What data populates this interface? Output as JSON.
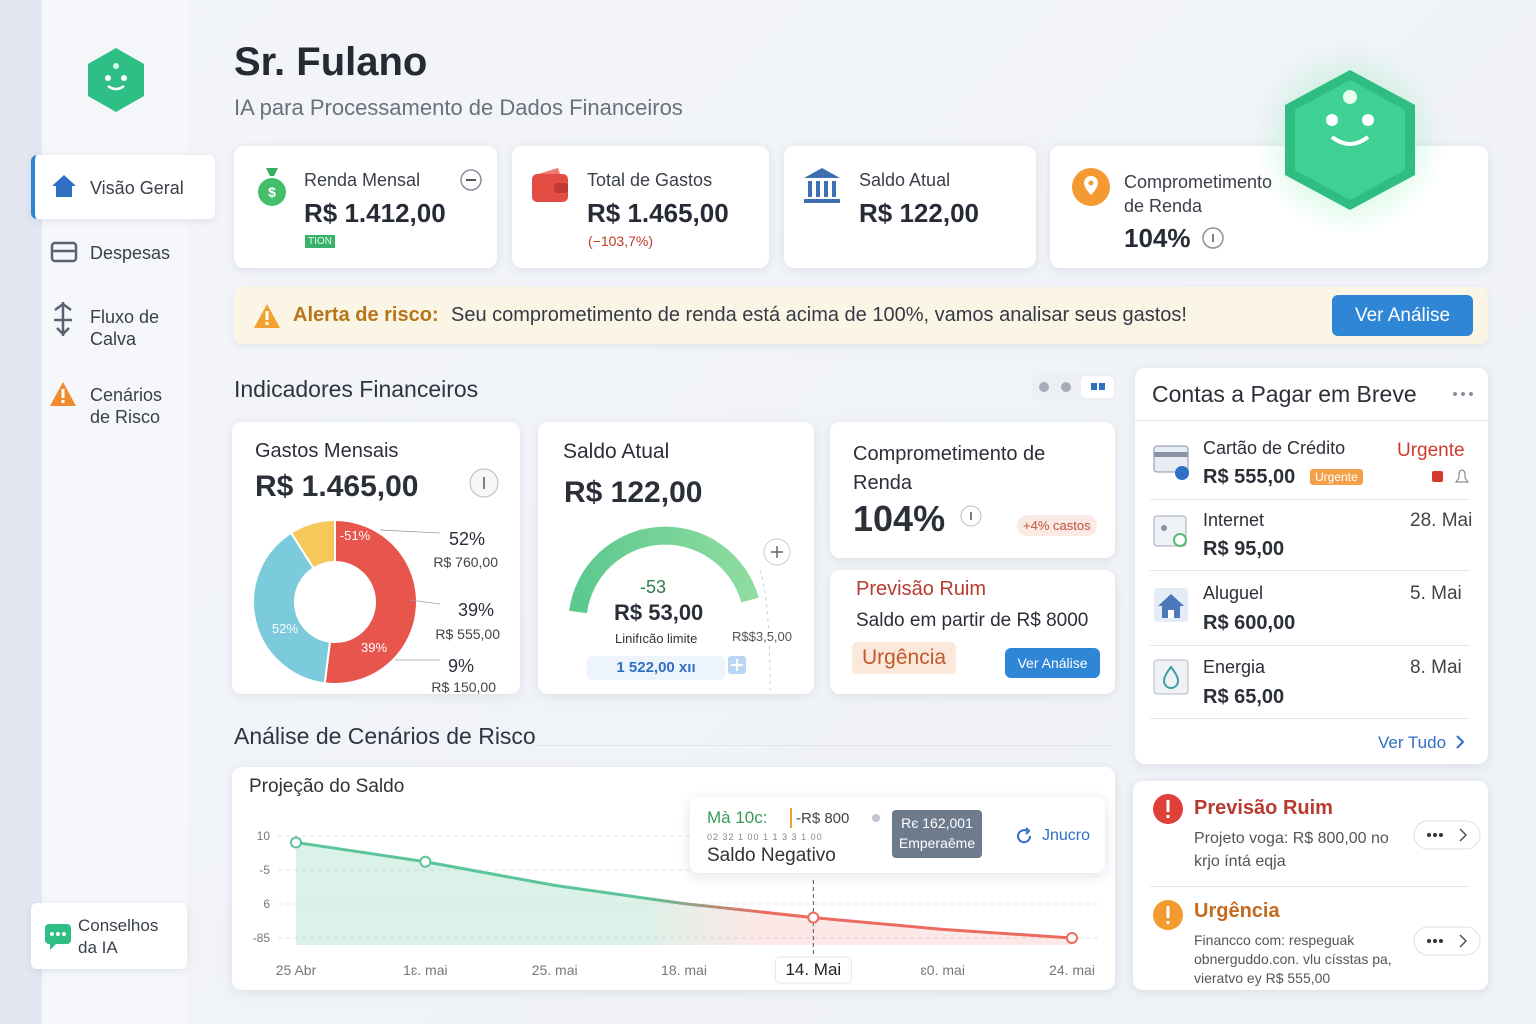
{
  "sidebar": {
    "nav": [
      "Visão Geral",
      "Despesas",
      "Fluxo de Calva",
      "Cenários de Risco"
    ],
    "advice": "Conselhos da IA"
  },
  "header": {
    "title": "Sr. Fulano",
    "subtitle": "IA para Processamento de Dados Financeiros"
  },
  "kpis": [
    {
      "label": "Renda Mensal",
      "value": "R$ 1.412,00",
      "badge": "TION"
    },
    {
      "label": "Total de Gastos",
      "value": "R$ 1.465,00",
      "note": "(−103,7%)"
    },
    {
      "label": "Saldo Atual",
      "value": "R$ 122,00"
    },
    {
      "label": "Comprometimento de Renda",
      "value": "104%"
    }
  ],
  "alert": {
    "title": "Alerta de risco:",
    "text": "Seu comprometimento de renda está acima de 100%, vamos analisar seus gastos!",
    "button": "Ver Análise"
  },
  "indicators": {
    "title": "Indicadores Financeiros",
    "expenses": {
      "title": "Gastos Mensais",
      "value": "R$ 1.465,00"
    },
    "balance": {
      "title": "Saldo Atual",
      "value": "R$ 122,00",
      "gauge_delta": "-53",
      "gauge_value": "R$ 53,00",
      "gauge_caption": "Linifıcão limite",
      "side": "R$$3,5,00",
      "limit": "1 522,00 xıı"
    },
    "commitment": {
      "title": "Comprometimento de Renda",
      "value": "104%",
      "chip": "+4% castos"
    },
    "forecast": {
      "title": "Previsão Ruim",
      "text": "Saldo em partir de R$ 8000",
      "tag": "Urgência",
      "button": "Ver Análise"
    }
  },
  "bills": {
    "title": "Contas a Pagar em Breve",
    "items": [
      {
        "name": "Cartão de Crédito",
        "amount": "R$ 555,00",
        "status": "Urgente",
        "tag": "Urgente"
      },
      {
        "name": "Internet",
        "amount": "R$ 95,00",
        "date": "28. Mai"
      },
      {
        "name": "Aluguel",
        "amount": "R$ 600,00",
        "date": "5. Mai"
      },
      {
        "name": "Energia",
        "amount": "R$ 65,00",
        "date": "8. Mai"
      }
    ],
    "link": "Ver Tudo"
  },
  "risk": {
    "title": "Análise de Cenários de Risco"
  },
  "notices": [
    {
      "title": "Previsão Ruim",
      "text": "Projeto voga: R$ 800,00 no krjo íntá eqja"
    },
    {
      "title": "Urgência",
      "text": "Financco com: respeguak obnerguddo.con. vlu císstas pa, vieratvo ey R$ 555,00"
    }
  ],
  "chart_data": [
    {
      "type": "pie",
      "donut": true,
      "values": [
        52,
        39,
        9
      ],
      "value_labels": [
        "52%",
        "39%",
        "9%"
      ],
      "amounts": [
        "R$ 760,00",
        "R$ 555,00",
        "R$ 150,00"
      ],
      "colors": [
        "#e8554c",
        "#7ccbdc",
        "#f6c85c"
      ],
      "inner_labels": [
        "-51%",
        "52%",
        "39%"
      ]
    },
    {
      "type": "line",
      "title": "Projeção do Saldo",
      "categories": [
        "25 Abr",
        "1ɛ. mai",
        "25. mai",
        "18. mai",
        "14. Mai",
        "ɛ0. mai",
        "24. mai"
      ],
      "values": [
        4,
        -14,
        -36,
        -53,
        -66,
        -77,
        -85
      ],
      "color": "#5cc49a",
      "color_end": "#ec6b5f",
      "ylim": [
        -85,
        10
      ],
      "y_labels": [
        "10",
        "-5",
        "6",
        "-85"
      ],
      "tooltip": {
        "title": "Mà 10c:",
        "amount": "-R$ 800",
        "detail": "02 32 1 00 1 1 3 3 1 00",
        "label": "Saldo Negativo",
        "badge": "Rє 162,001 Emperaême",
        "action": "Jnucro"
      }
    }
  ]
}
